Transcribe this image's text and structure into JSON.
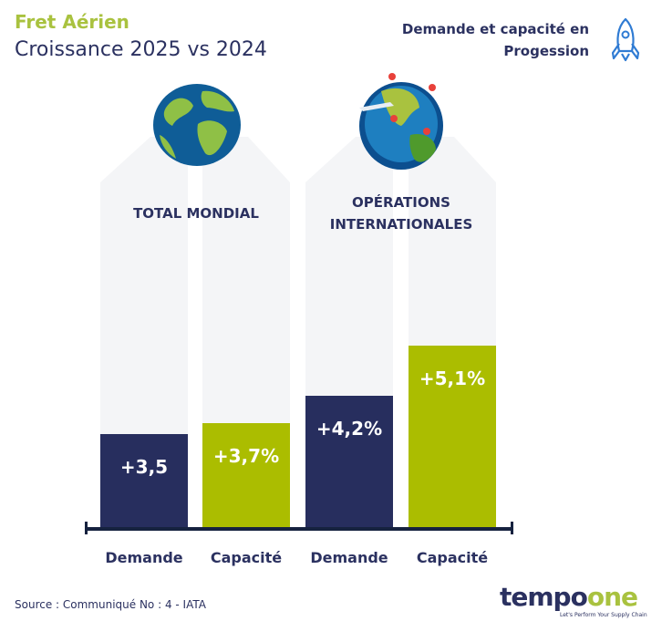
{
  "header": {
    "title": "Fret Aérien",
    "subtitle": "Croissance 2025 vs 2024",
    "tagline": "Demande et capacité en Progession",
    "tagline_icon": "rocket-icon"
  },
  "groups": [
    {
      "label": "TOTAL MONDIAL",
      "icon": "globe-icon"
    },
    {
      "label": "OPÉRATIONS INTERNATIONALES",
      "icon": "globe-flight-routes-icon"
    }
  ],
  "chart_data": {
    "type": "bar",
    "title": "Croissance 2025 vs 2024",
    "categories": [
      "Demande",
      "Capacité",
      "Demande",
      "Capacité"
    ],
    "groups": [
      "TOTAL MONDIAL",
      "TOTAL MONDIAL",
      "OPÉRATIONS INTERNATIONALES",
      "OPÉRATIONS INTERNATIONALES"
    ],
    "values": [
      3.5,
      3.7,
      4.2,
      5.1
    ],
    "data_labels": [
      "+3,5",
      "+3,7%",
      "+4,2%",
      "+5,1%"
    ],
    "colors": [
      "#272e5e",
      "#abbd00",
      "#272e5e",
      "#abbd00"
    ],
    "ylim": [
      1.8,
      7.3
    ],
    "xlabel": "",
    "ylabel": "",
    "grid": false
  },
  "footer": {
    "source": "Source : Communiqué No : 4 - IATA",
    "logo_left": "tempo",
    "logo_right": "one",
    "slogan": "Let's Perform Your Supply Chain"
  }
}
